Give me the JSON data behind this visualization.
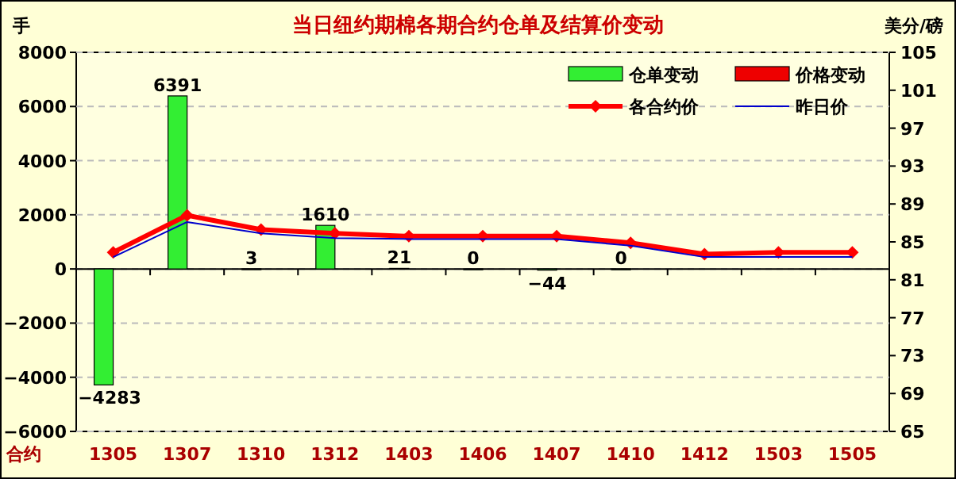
{
  "chart_data": {
    "type": "bar",
    "title": "当日纽约期棉各期合约仓单及结算价变动",
    "xlabel": "合约",
    "ylabel": "手",
    "y2label": "美分/磅",
    "categories": [
      "1305",
      "1307",
      "1310",
      "1312",
      "1403",
      "1406",
      "1407",
      "1410",
      "1412",
      "1503",
      "1505"
    ],
    "series": [
      {
        "name": "仓单变动",
        "color": "#33ee33",
        "values": [
          -4283,
          6391,
          3,
          1610,
          21,
          0,
          -44,
          0,
          null,
          null,
          null
        ],
        "value_labels": [
          "−4283",
          "6391",
          "3",
          "1610",
          "21",
          "0",
          "−44",
          "0",
          null,
          null,
          null
        ]
      },
      {
        "name": "价格变动",
        "color": "#ee0000",
        "values": [
          null,
          null,
          null,
          null,
          null,
          null,
          null,
          null,
          null,
          null,
          null
        ]
      },
      {
        "name": "各合约价",
        "type": "line",
        "axis": "y2",
        "color": "#ff0000",
        "marker": "diamond",
        "values": [
          83.9,
          87.8,
          86.3,
          85.9,
          85.6,
          85.6,
          85.6,
          84.9,
          83.7,
          83.9,
          83.9
        ]
      },
      {
        "name": "昨日价",
        "type": "line",
        "axis": "y2",
        "color": "#0000cc",
        "marker": "none",
        "values": [
          83.4,
          87.1,
          85.9,
          85.4,
          85.3,
          85.3,
          85.3,
          84.6,
          83.4,
          83.4,
          83.4
        ]
      }
    ],
    "ylim": [
      -6000,
      8000
    ],
    "yticks": [
      -6000,
      -4000,
      -2000,
      0,
      2000,
      4000,
      6000,
      8000
    ],
    "y2lim": [
      65,
      105
    ],
    "y2ticks": [
      65,
      69,
      73,
      77,
      81,
      85,
      89,
      93,
      97,
      101,
      105
    ],
    "grid": "y",
    "legend": "top right"
  }
}
